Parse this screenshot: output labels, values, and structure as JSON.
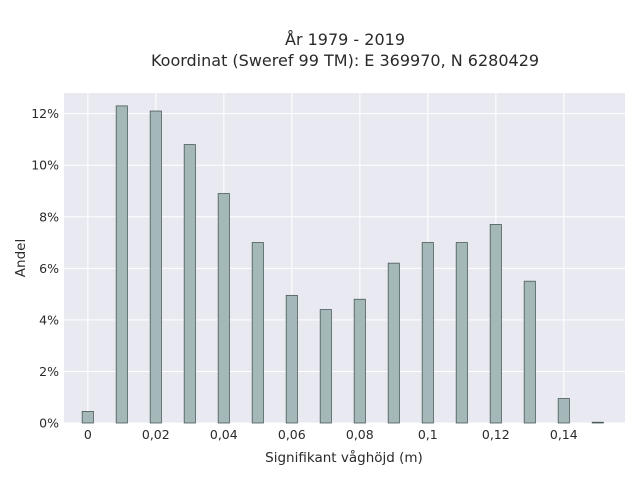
{
  "chart_data": {
    "type": "bar",
    "title_lines": [
      "År 1979 - 2019",
      "Koordinat (Sweref 99 TM): E 369970, N 6280429"
    ],
    "xlabel": "Signifikant våghöjd (m)",
    "ylabel": "Andel",
    "x": [
      0,
      0.01,
      0.02,
      0.03,
      0.04,
      0.05,
      0.06,
      0.07,
      0.08,
      0.09,
      0.1,
      0.11,
      0.12,
      0.13,
      0.14,
      0.15
    ],
    "values": [
      0.45,
      12.3,
      12.1,
      10.8,
      8.9,
      7.0,
      4.95,
      4.4,
      4.8,
      6.2,
      7.0,
      7.0,
      7.7,
      5.5,
      0.95,
      0.03
    ],
    "xlim": [
      -0.007,
      0.158
    ],
    "ylim": [
      0,
      12.8
    ],
    "xticks": [
      0,
      0.02,
      0.04,
      0.06,
      0.08,
      0.1,
      0.12,
      0.14
    ],
    "xtick_labels": [
      "0",
      "0,02",
      "0,04",
      "0,06",
      "0,08",
      "0,1",
      "0,12",
      "0,14"
    ],
    "yticks": [
      0,
      2,
      4,
      6,
      8,
      10,
      12
    ],
    "ytick_labels": [
      "0%",
      "2%",
      "4%",
      "6%",
      "8%",
      "10%",
      "12%"
    ],
    "grid": true,
    "colors": {
      "bar_fill": "#a5b8b9",
      "bar_stroke": "#4a5a5b",
      "plot_bg": "#e9e9f1",
      "grid": "#ffffff"
    }
  }
}
